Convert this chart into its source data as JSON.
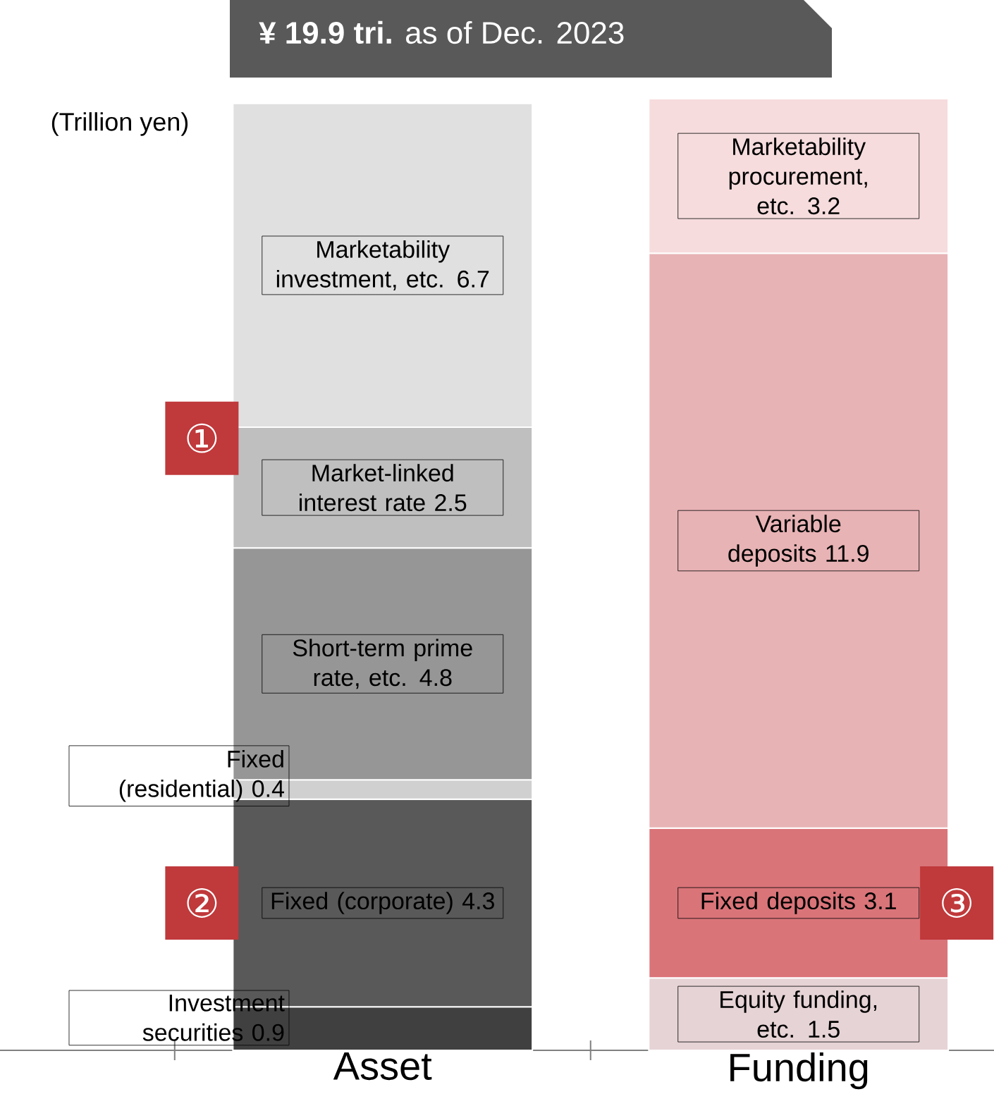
{
  "chart_data": {
    "type": "bar",
    "stacked": true,
    "data_labels": true,
    "title": "**¥ 19.9 tri.** as of Dec. 2023",
    "ylabel": "(Trillion yen)",
    "categories": [
      "Asset",
      "Funding"
    ],
    "series": [
      {
        "name": "Investment securities",
        "color": "#404040",
        "values": [
          0.9,
          null
        ]
      },
      {
        "name": "Fixed (corporate)",
        "color": "#595959",
        "values": [
          4.3,
          null
        ]
      },
      {
        "name": "Fixed (residential)",
        "color": "#d0d0d0",
        "values": [
          0.4,
          null
        ]
      },
      {
        "name": "Short-term prime rate, etc.",
        "color": "#969696",
        "values": [
          4.8,
          null
        ]
      },
      {
        "name": "Market-linked interest rate",
        "color": "#bfbfbf",
        "values": [
          2.5,
          null
        ]
      },
      {
        "name": "Marketability investment, etc.",
        "color": "#e0e0e0",
        "values": [
          6.7,
          null
        ]
      },
      {
        "name": "Equity funding, etc.",
        "color": "#e6d3d5",
        "values": [
          null,
          1.5
        ]
      },
      {
        "name": "Fixed deposits",
        "color": "#d97479",
        "values": [
          null,
          3.1
        ]
      },
      {
        "name": "Variable deposits",
        "color": "#e8b3b5",
        "values": [
          null,
          11.9
        ]
      },
      {
        "name": "Marketability procurement, etc.",
        "color": "#f6dcdd",
        "values": [
          null,
          3.2
        ]
      }
    ],
    "annotations": [
      "①",
      "②",
      "③"
    ]
  }
}
